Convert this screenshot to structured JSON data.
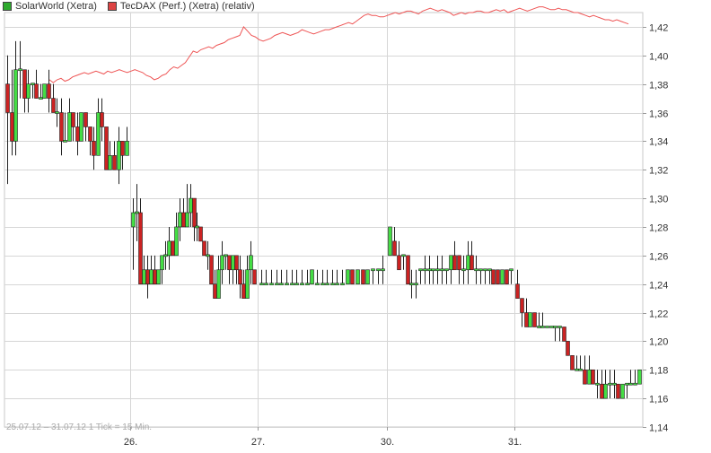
{
  "legend": [
    {
      "label": "SolarWorld (Xetra)",
      "color": "#2eaa2e"
    },
    {
      "label": "TecDAX (Perf.) (Xetra) (relativ)",
      "color": "#dd4444"
    }
  ],
  "footnote": "25.07.12 – 31.07.12   1 Tick = 15 Min.",
  "chart_data": {
    "type": "candlestick",
    "y_axis": {
      "position": "right",
      "min": 1.14,
      "max": 1.42,
      "ticks": [
        "1,14",
        "1,16",
        "1,18",
        "1,20",
        "1,22",
        "1,24",
        "1,26",
        "1,28",
        "1,30",
        "1,32",
        "1,34",
        "1,36",
        "1,38",
        "1,40",
        "1,42"
      ]
    },
    "x_axis": {
      "tick_labels": [
        "26.",
        "27.",
        "30.",
        "31."
      ]
    },
    "grid": true,
    "up_color": "#44dd44",
    "down_color": "#cc2222",
    "index_color": "#ee5555",
    "days": [
      {
        "label": "25.07.12",
        "candles": [
          [
            1.38,
            1.36,
            1.4,
            1.31
          ],
          [
            1.36,
            1.34,
            1.39,
            1.33
          ],
          [
            1.34,
            1.39,
            1.41,
            1.33
          ],
          [
            1.39,
            1.39,
            1.41,
            1.37
          ],
          [
            1.39,
            1.37,
            1.39,
            1.36
          ],
          [
            1.37,
            1.38,
            1.39,
            1.36
          ],
          [
            1.38,
            1.38,
            1.38,
            1.37
          ],
          [
            1.38,
            1.37,
            1.39,
            1.37
          ],
          [
            1.37,
            1.37,
            1.38,
            1.37
          ],
          [
            1.37,
            1.38,
            1.38,
            1.37
          ],
          [
            1.38,
            1.37,
            1.39,
            1.36
          ],
          [
            1.37,
            1.36,
            1.38,
            1.36
          ],
          [
            1.36,
            1.36,
            1.37,
            1.35
          ],
          [
            1.36,
            1.34,
            1.37,
            1.33
          ],
          [
            1.34,
            1.34,
            1.36,
            1.34
          ],
          [
            1.34,
            1.36,
            1.37,
            1.34
          ],
          [
            1.36,
            1.35,
            1.36,
            1.34
          ],
          [
            1.35,
            1.34,
            1.36,
            1.33
          ],
          [
            1.34,
            1.36,
            1.36,
            1.34
          ],
          [
            1.36,
            1.35,
            1.36,
            1.34
          ],
          [
            1.35,
            1.34,
            1.35,
            1.33
          ],
          [
            1.34,
            1.33,
            1.35,
            1.32
          ],
          [
            1.33,
            1.36,
            1.37,
            1.33
          ],
          [
            1.36,
            1.35,
            1.37,
            1.34
          ],
          [
            1.35,
            1.32,
            1.35,
            1.32
          ],
          [
            1.32,
            1.33,
            1.34,
            1.32
          ],
          [
            1.33,
            1.32,
            1.34,
            1.32
          ],
          [
            1.32,
            1.34,
            1.35,
            1.31
          ],
          [
            1.34,
            1.33,
            1.34,
            1.32
          ],
          [
            1.33,
            1.34,
            1.35,
            1.33
          ]
        ]
      },
      {
        "label": "26.07.12",
        "candles": [
          [
            1.28,
            1.29,
            1.3,
            1.25
          ],
          [
            1.29,
            1.29,
            1.31,
            1.27
          ],
          [
            1.29,
            1.24,
            1.3,
            1.24
          ],
          [
            1.24,
            1.25,
            1.26,
            1.24
          ],
          [
            1.25,
            1.24,
            1.26,
            1.23
          ],
          [
            1.24,
            1.25,
            1.26,
            1.24
          ],
          [
            1.25,
            1.24,
            1.26,
            1.24
          ],
          [
            1.24,
            1.25,
            1.25,
            1.24
          ],
          [
            1.25,
            1.26,
            1.26,
            1.24
          ],
          [
            1.26,
            1.26,
            1.27,
            1.25
          ],
          [
            1.26,
            1.27,
            1.28,
            1.25
          ],
          [
            1.27,
            1.26,
            1.27,
            1.26
          ],
          [
            1.26,
            1.28,
            1.29,
            1.26
          ],
          [
            1.28,
            1.29,
            1.3,
            1.27
          ],
          [
            1.29,
            1.28,
            1.3,
            1.28
          ],
          [
            1.28,
            1.29,
            1.31,
            1.28
          ],
          [
            1.29,
            1.3,
            1.31,
            1.28
          ],
          [
            1.3,
            1.28,
            1.3,
            1.27
          ],
          [
            1.28,
            1.28,
            1.29,
            1.27
          ],
          [
            1.28,
            1.27,
            1.28,
            1.27
          ],
          [
            1.27,
            1.26,
            1.27,
            1.26
          ],
          [
            1.26,
            1.26,
            1.27,
            1.25
          ],
          [
            1.26,
            1.24,
            1.26,
            1.24
          ],
          [
            1.24,
            1.23,
            1.25,
            1.23
          ],
          [
            1.23,
            1.25,
            1.26,
            1.23
          ],
          [
            1.25,
            1.26,
            1.27,
            1.24
          ],
          [
            1.26,
            1.26,
            1.26,
            1.25
          ],
          [
            1.26,
            1.25,
            1.26,
            1.24
          ],
          [
            1.25,
            1.26,
            1.26,
            1.24
          ],
          [
            1.26,
            1.25,
            1.26,
            1.24
          ],
          [
            1.25,
            1.24,
            1.26,
            1.23
          ],
          [
            1.24,
            1.23,
            1.25,
            1.23
          ],
          [
            1.23,
            1.25,
            1.26,
            1.24
          ],
          [
            1.25,
            1.26,
            1.27,
            1.24
          ],
          [
            1.25,
            1.24,
            1.25,
            1.24
          ]
        ]
      },
      {
        "label": "27.07.12",
        "candles": [
          [
            1.24,
            1.24,
            1.25,
            1.24
          ],
          [
            1.24,
            1.24,
            1.25,
            1.24
          ],
          [
            1.24,
            1.24,
            1.25,
            1.24
          ],
          [
            1.24,
            1.24,
            1.25,
            1.24
          ],
          [
            1.24,
            1.24,
            1.25,
            1.24
          ],
          [
            1.24,
            1.24,
            1.25,
            1.24
          ],
          [
            1.24,
            1.24,
            1.25,
            1.24
          ],
          [
            1.24,
            1.24,
            1.25,
            1.24
          ],
          [
            1.24,
            1.24,
            1.25,
            1.24
          ],
          [
            1.24,
            1.24,
            1.25,
            1.24
          ],
          [
            1.24,
            1.25,
            1.25,
            1.24
          ],
          [
            1.24,
            1.24,
            1.25,
            1.24
          ],
          [
            1.24,
            1.24,
            1.25,
            1.24
          ],
          [
            1.24,
            1.24,
            1.25,
            1.24
          ],
          [
            1.24,
            1.24,
            1.25,
            1.24
          ],
          [
            1.24,
            1.24,
            1.25,
            1.24
          ],
          [
            1.24,
            1.24,
            1.25,
            1.24
          ],
          [
            1.24,
            1.25,
            1.25,
            1.24
          ],
          [
            1.25,
            1.24,
            1.25,
            1.24
          ],
          [
            1.24,
            1.25,
            1.25,
            1.24
          ],
          [
            1.25,
            1.24,
            1.25,
            1.24
          ],
          [
            1.24,
            1.25,
            1.25,
            1.24
          ],
          [
            1.25,
            1.25,
            1.25,
            1.24
          ],
          [
            1.25,
            1.25,
            1.25,
            1.24
          ],
          [
            1.25,
            1.25,
            1.26,
            1.24
          ]
        ]
      },
      {
        "label": "30.07.12",
        "candles": [
          [
            1.26,
            1.28,
            1.28,
            1.26
          ],
          [
            1.27,
            1.26,
            1.28,
            1.26
          ],
          [
            1.26,
            1.25,
            1.27,
            1.25
          ],
          [
            1.26,
            1.26,
            1.26,
            1.25
          ],
          [
            1.26,
            1.24,
            1.26,
            1.24
          ],
          [
            1.24,
            1.24,
            1.25,
            1.23
          ],
          [
            1.24,
            1.24,
            1.25,
            1.23
          ],
          [
            1.25,
            1.25,
            1.25,
            1.24
          ],
          [
            1.25,
            1.25,
            1.26,
            1.24
          ],
          [
            1.25,
            1.25,
            1.26,
            1.24
          ],
          [
            1.25,
            1.25,
            1.25,
            1.24
          ],
          [
            1.25,
            1.25,
            1.26,
            1.24
          ],
          [
            1.25,
            1.25,
            1.26,
            1.24
          ],
          [
            1.25,
            1.25,
            1.25,
            1.24
          ],
          [
            1.25,
            1.26,
            1.26,
            1.24
          ],
          [
            1.26,
            1.25,
            1.27,
            1.25
          ],
          [
            1.26,
            1.25,
            1.26,
            1.24
          ],
          [
            1.25,
            1.25,
            1.26,
            1.24
          ],
          [
            1.25,
            1.26,
            1.27,
            1.24
          ],
          [
            1.26,
            1.25,
            1.27,
            1.25
          ],
          [
            1.25,
            1.25,
            1.26,
            1.24
          ],
          [
            1.25,
            1.25,
            1.25,
            1.24
          ],
          [
            1.25,
            1.25,
            1.25,
            1.24
          ],
          [
            1.25,
            1.25,
            1.25,
            1.24
          ],
          [
            1.25,
            1.24,
            1.25,
            1.24
          ],
          [
            1.25,
            1.24,
            1.25,
            1.24
          ],
          [
            1.24,
            1.25,
            1.25,
            1.24
          ],
          [
            1.25,
            1.24,
            1.25,
            1.24
          ],
          [
            1.25,
            1.25,
            1.25,
            1.24
          ]
        ]
      },
      {
        "label": "31.07.12",
        "candles": [
          [
            1.24,
            1.23,
            1.25,
            1.23
          ],
          [
            1.23,
            1.22,
            1.23,
            1.21
          ],
          [
            1.22,
            1.21,
            1.23,
            1.21
          ],
          [
            1.21,
            1.22,
            1.22,
            1.21
          ],
          [
            1.22,
            1.21,
            1.22,
            1.21
          ],
          [
            1.21,
            1.21,
            1.22,
            1.21
          ],
          [
            1.21,
            1.21,
            1.22,
            1.21
          ],
          [
            1.21,
            1.21,
            1.21,
            1.21
          ],
          [
            1.21,
            1.21,
            1.21,
            1.21
          ],
          [
            1.21,
            1.21,
            1.21,
            1.2
          ],
          [
            1.21,
            1.21,
            1.21,
            1.2
          ],
          [
            1.21,
            1.2,
            1.21,
            1.2
          ],
          [
            1.2,
            1.19,
            1.2,
            1.19
          ],
          [
            1.19,
            1.18,
            1.19,
            1.18
          ],
          [
            1.18,
            1.18,
            1.19,
            1.18
          ],
          [
            1.18,
            1.18,
            1.19,
            1.18
          ],
          [
            1.18,
            1.17,
            1.19,
            1.17
          ],
          [
            1.17,
            1.18,
            1.19,
            1.17
          ],
          [
            1.18,
            1.17,
            1.18,
            1.17
          ],
          [
            1.17,
            1.17,
            1.18,
            1.16
          ],
          [
            1.17,
            1.16,
            1.18,
            1.16
          ],
          [
            1.16,
            1.17,
            1.18,
            1.16
          ],
          [
            1.17,
            1.17,
            1.18,
            1.16
          ],
          [
            1.17,
            1.17,
            1.18,
            1.16
          ],
          [
            1.17,
            1.16,
            1.17,
            1.16
          ],
          [
            1.16,
            1.17,
            1.17,
            1.16
          ],
          [
            1.17,
            1.17,
            1.17,
            1.16
          ],
          [
            1.17,
            1.17,
            1.18,
            1.17
          ],
          [
            1.17,
            1.17,
            1.18,
            1.17
          ],
          [
            1.17,
            1.18,
            1.18,
            1.17
          ]
        ]
      }
    ],
    "tecdax_relative": [
      1.383,
      1.381,
      1.383,
      1.384,
      1.382,
      1.383,
      1.385,
      1.386,
      1.387,
      1.388,
      1.387,
      1.388,
      1.389,
      1.388,
      1.387,
      1.389,
      1.388,
      1.389,
      1.39,
      1.389,
      1.388,
      1.389,
      1.39,
      1.389,
      1.388,
      1.386,
      1.385,
      1.383,
      1.384,
      1.386,
      1.387,
      1.39,
      1.392,
      1.391,
      1.393,
      1.395,
      1.399,
      1.403,
      1.402,
      1.404,
      1.405,
      1.406,
      1.405,
      1.407,
      1.408,
      1.409,
      1.411,
      1.412,
      1.413,
      1.414,
      1.42,
      1.417,
      1.414,
      1.413,
      1.411,
      1.41,
      1.411,
      1.412,
      1.414,
      1.415,
      1.416,
      1.415,
      1.414,
      1.415,
      1.416,
      1.418,
      1.417,
      1.416,
      1.415,
      1.416,
      1.417,
      1.418,
      1.418,
      1.419,
      1.42,
      1.421,
      1.422,
      1.423,
      1.422,
      1.424,
      1.426,
      1.428,
      1.429,
      1.428,
      1.428,
      1.427,
      1.427,
      1.428,
      1.429,
      1.43,
      1.429,
      1.43,
      1.431,
      1.431,
      1.43,
      1.429,
      1.431,
      1.432,
      1.433,
      1.432,
      1.431,
      1.432,
      1.431,
      1.43,
      1.428,
      1.429,
      1.43,
      1.429,
      1.43,
      1.43,
      1.431,
      1.431,
      1.43,
      1.43,
      1.431,
      1.432,
      1.431,
      1.432,
      1.43,
      1.431,
      1.432,
      1.433,
      1.432,
      1.431,
      1.432,
      1.433,
      1.434,
      1.434,
      1.433,
      1.432,
      1.432,
      1.433,
      1.432,
      1.432,
      1.431,
      1.43,
      1.43,
      1.429,
      1.428,
      1.427,
      1.428,
      1.427,
      1.426,
      1.425,
      1.425,
      1.424,
      1.425,
      1.424,
      1.423,
      1.422
    ]
  }
}
